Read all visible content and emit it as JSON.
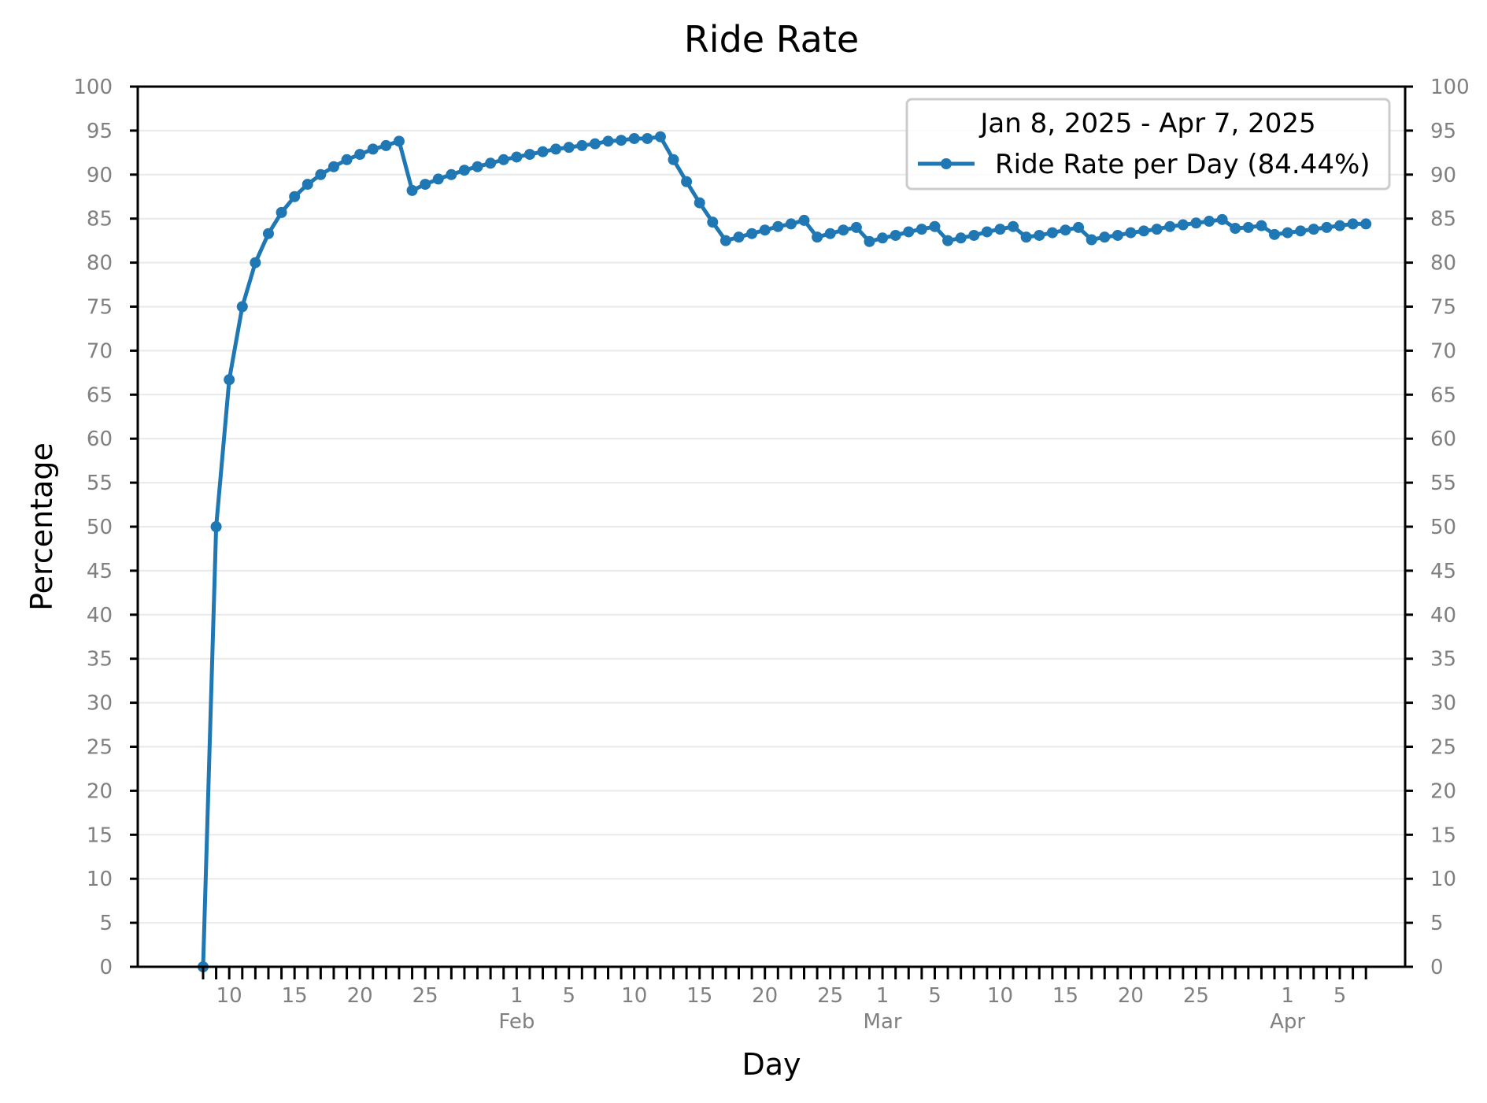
{
  "chart_data": {
    "type": "line",
    "title": "Ride Rate",
    "xlabel": "Day",
    "ylabel": "Percentage",
    "ylim": [
      0,
      100
    ],
    "xlim": [
      "2025-01-03",
      "2025-04-10"
    ],
    "y_ticks": [
      0,
      5,
      10,
      15,
      20,
      25,
      30,
      35,
      40,
      45,
      50,
      55,
      60,
      65,
      70,
      75,
      80,
      85,
      90,
      95,
      100
    ],
    "y_axis_both_sides": true,
    "grid": "horizontal",
    "x_tick_labels": [
      {
        "date": "2025-01-10",
        "label": "10"
      },
      {
        "date": "2025-01-15",
        "label": "15"
      },
      {
        "date": "2025-01-20",
        "label": "20"
      },
      {
        "date": "2025-01-25",
        "label": "25"
      },
      {
        "date": "2025-02-01",
        "label": "1",
        "month": "Feb"
      },
      {
        "date": "2025-02-05",
        "label": "5"
      },
      {
        "date": "2025-02-10",
        "label": "10"
      },
      {
        "date": "2025-02-15",
        "label": "15"
      },
      {
        "date": "2025-02-20",
        "label": "20"
      },
      {
        "date": "2025-02-25",
        "label": "25"
      },
      {
        "date": "2025-03-01",
        "label": "1",
        "month": "Mar"
      },
      {
        "date": "2025-03-05",
        "label": "5"
      },
      {
        "date": "2025-03-10",
        "label": "10"
      },
      {
        "date": "2025-03-15",
        "label": "15"
      },
      {
        "date": "2025-03-20",
        "label": "20"
      },
      {
        "date": "2025-03-25",
        "label": "25"
      },
      {
        "date": "2025-04-01",
        "label": "1",
        "month": "Apr"
      },
      {
        "date": "2025-04-05",
        "label": "5"
      }
    ],
    "legend": {
      "title": "Jan  8, 2025 - Apr  7, 2025",
      "placement": "top-right"
    },
    "series": [
      {
        "name": "Ride Rate per Day (84.44%)",
        "color": "#1f77b4",
        "marker": "circle",
        "x_start": "2025-01-08",
        "x_end": "2025-04-07",
        "x_step": "1 day",
        "values": [
          0,
          50,
          66.7,
          75,
          80,
          83.3,
          85.7,
          87.5,
          88.9,
          90,
          90.9,
          91.7,
          92.3,
          92.9,
          93.3,
          93.8,
          88.2,
          88.9,
          89.5,
          90,
          90.5,
          90.9,
          91.3,
          91.7,
          92,
          92.3,
          92.6,
          92.9,
          93.1,
          93.3,
          93.5,
          93.8,
          93.9,
          94.1,
          94.1,
          94.3,
          91.7,
          89.2,
          86.8,
          84.6,
          82.5,
          82.9,
          83.3,
          83.7,
          84.1,
          84.4,
          84.8,
          82.9,
          83.3,
          83.7,
          84,
          82.4,
          82.8,
          83.1,
          83.5,
          83.8,
          84.1,
          82.5,
          82.8,
          83.1,
          83.5,
          83.8,
          84.1,
          82.9,
          83.1,
          83.4,
          83.7,
          84,
          82.6,
          82.9,
          83.1,
          83.4,
          83.6,
          83.8,
          84.1,
          84.3,
          84.5,
          84.7,
          84.9,
          83.9,
          84,
          84.2,
          83.2,
          83.4,
          83.6,
          83.8,
          84,
          84.2,
          84.4,
          84.4
        ]
      }
    ]
  }
}
